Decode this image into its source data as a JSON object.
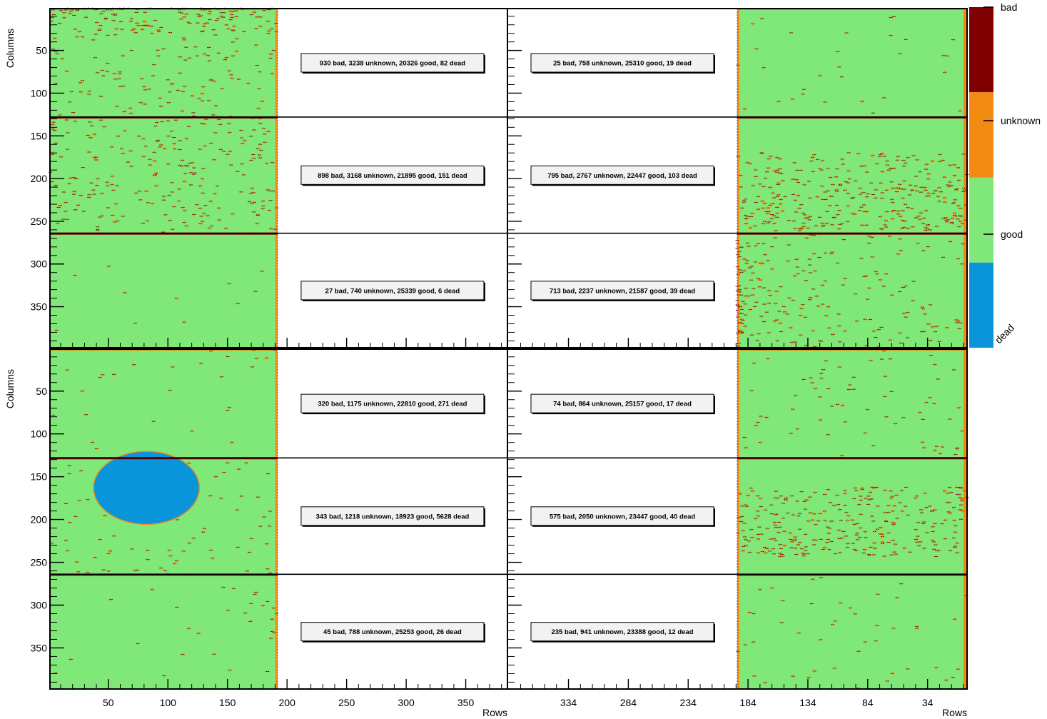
{
  "chart_data": {
    "type": "heatmap",
    "legend": {
      "categories": [
        "dead",
        "good",
        "unknown",
        "bad"
      ],
      "colors": {
        "dead": "#0a94da",
        "good": "#80e878",
        "unknown": "#f28a14",
        "bad": "#7e0000"
      },
      "placement": "right"
    },
    "axes": {
      "ylabel": "Columns",
      "xlabel": "Rows",
      "y_ticks": [
        50,
        100,
        150,
        200,
        250,
        300,
        350
      ],
      "y_range": [
        1,
        398
      ],
      "left_x_ticks": [
        50,
        100,
        150,
        200,
        250,
        300,
        350
      ],
      "left_x_range": [
        1,
        385
      ],
      "right_x_ticks": [
        334,
        284,
        234,
        184,
        134,
        84,
        34
      ],
      "right_x_range": [
        385,
        1
      ],
      "sector_boundaries_columns": [
        128,
        264
      ]
    },
    "panels": [
      {
        "id": "top-left",
        "pixel_rows": [
          1,
          192
        ],
        "dense_area": "top-rows",
        "sectors": [
          "930 bad, 3238 unknown, 20326 good, 82 dead",
          "898 bad, 3168 unknown, 21895 good, 151 dead",
          "27 bad, 740 unknown, 25339 good, 6 dead"
        ]
      },
      {
        "id": "top-right",
        "pixel_rows": [
          193,
          1
        ],
        "sectors": [
          "25 bad, 758 unknown, 25310 good, 19 dead",
          "795 bad, 2767 unknown, 22447 good, 103 dead",
          "713 bad, 2237 unknown, 21587 good, 39 dead"
        ]
      },
      {
        "id": "bottom-left",
        "pixel_rows": [
          1,
          192
        ],
        "dead_region": {
          "center_row": 82,
          "center_column": 163,
          "radius_rows": 44,
          "radius_columns": 42
        },
        "sectors": [
          "320 bad, 1175 unknown, 22810 good, 271 dead",
          "343 bad, 1218 unknown, 18923 good, 5628 dead",
          "45 bad, 788 unknown, 25253 good, 26 dead"
        ]
      },
      {
        "id": "bottom-right",
        "pixel_rows": [
          193,
          1
        ],
        "sectors": [
          "74 bad, 864 unknown, 25157 good, 17 dead",
          "575 bad, 2050 unknown, 23447 good, 40 dead",
          "235 bad, 941 unknown, 23388 good, 12 dead"
        ]
      }
    ]
  }
}
